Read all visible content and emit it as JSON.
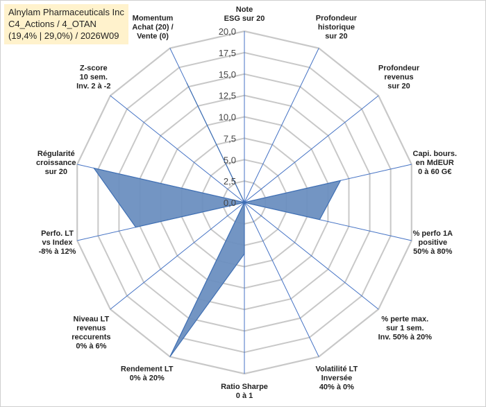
{
  "title_box": {
    "line1": "Alnylam Pharmaceuticals Inc",
    "line2": "C4_Actions / 4_OTAN",
    "line3": "(19,4% | 29,0%) / 2026W09"
  },
  "chart_data": {
    "type": "radar",
    "axis_range": [
      0,
      20
    ],
    "ticks": [
      "0,0",
      "2,5",
      "5,0",
      "7,5",
      "10,0",
      "12,5",
      "15,0",
      "17,5",
      "20,0"
    ],
    "axes": [
      {
        "label": [
          "Note",
          "ESG sur 20"
        ],
        "value": 0
      },
      {
        "label": [
          "Profondeur",
          "historique",
          "sur 20"
        ],
        "value": 0
      },
      {
        "label": [
          "Profondeur",
          "revenus",
          "sur 20"
        ],
        "value": 0
      },
      {
        "label": [
          "Capi. bours.",
          "en MdEUR",
          "0 à 60 G€"
        ],
        "value": 11.5
      },
      {
        "label": [
          "% perfo 1A",
          "positive",
          "50% à 80%"
        ],
        "value": 9
      },
      {
        "label": [
          "% perte max.",
          "sur 1 sem.",
          "Inv. 50% à 20%"
        ],
        "value": 0
      },
      {
        "label": [
          "Volatilité LT",
          "Inversée",
          "40% à 0%"
        ],
        "value": 0
      },
      {
        "label": [
          "Ratio Sharpe",
          "0 à 1"
        ],
        "value": 6
      },
      {
        "label": [
          "Rendement LT",
          "0% à 20%"
        ],
        "value": 20
      },
      {
        "label": [
          "Niveau LT",
          "revenus",
          "reccurents",
          "0% à 6%"
        ],
        "value": 0
      },
      {
        "label": [
          "Perfo. LT",
          "vs Index",
          "-8% à 12%"
        ],
        "value": 13
      },
      {
        "label": [
          "Régularité",
          "croissance",
          "sur 20"
        ],
        "value": 18
      },
      {
        "label": [
          "Z-score",
          "10 sem.",
          "Inv. 2 à -2"
        ],
        "value": 0
      },
      {
        "label": [
          "Momentum",
          "Achat (20) /",
          "Vente (0)"
        ],
        "value": 15.5
      }
    ],
    "colors": {
      "fill": "#6b8fc0",
      "stroke": "#3f6fb3",
      "grid": "#c8c8c8",
      "spoke": "#4472c4"
    }
  }
}
